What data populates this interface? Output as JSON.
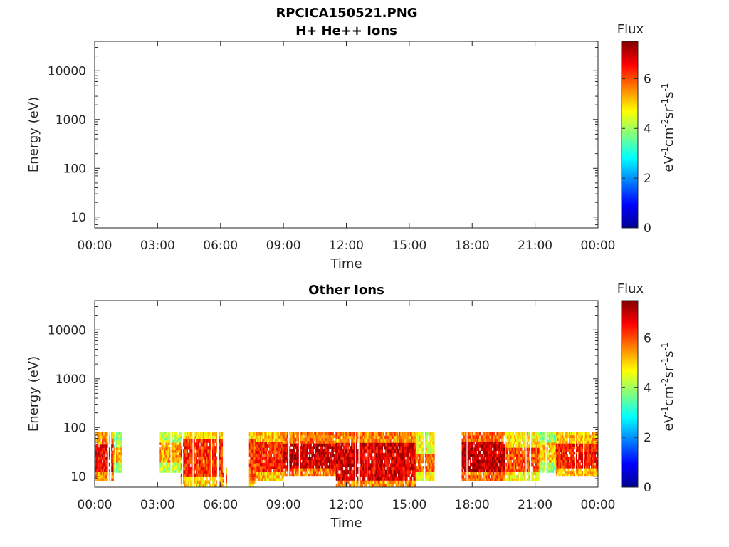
{
  "figure_title": "RPCICA150521.PNG",
  "chart_data": [
    {
      "type": "heatmap",
      "title": "H+ He++ Ions",
      "xlabel": "Time",
      "ylabel": "Energy (eV)",
      "x_tick_labels": [
        "00:00",
        "03:00",
        "06:00",
        "09:00",
        "12:00",
        "15:00",
        "18:00",
        "21:00",
        "00:00"
      ],
      "x_range_hours": [
        0,
        24
      ],
      "y_scale": "log",
      "y_range": [
        6,
        40000
      ],
      "y_tick_values": [
        10,
        100,
        1000,
        10000
      ],
      "y_tick_labels": [
        "10",
        "100",
        "1000",
        "10000"
      ],
      "colorbar": {
        "label": "Flux",
        "units": "eV-1cm-2sr-1s-1",
        "range": [
          0,
          7.5
        ],
        "tick_values": [
          0,
          2,
          4,
          6
        ],
        "tick_labels": [
          "0",
          "2",
          "4",
          "6"
        ],
        "colormap": "jet"
      },
      "segments": []
    },
    {
      "type": "heatmap",
      "title": "Other Ions",
      "xlabel": "Time",
      "ylabel": "Energy (eV)",
      "x_tick_labels": [
        "00:00",
        "03:00",
        "06:00",
        "09:00",
        "12:00",
        "15:00",
        "18:00",
        "21:00",
        "00:00"
      ],
      "x_range_hours": [
        0,
        24
      ],
      "y_scale": "log",
      "y_range": [
        6,
        40000
      ],
      "y_tick_values": [
        10,
        100,
        1000,
        10000
      ],
      "y_tick_labels": [
        "10",
        "100",
        "1000",
        "10000"
      ],
      "colorbar": {
        "label": "Flux",
        "units": "eV-1cm-2sr-1s-1",
        "range": [
          0,
          7.5
        ],
        "tick_values": [
          0,
          2,
          4,
          6
        ],
        "tick_labels": [
          "0",
          "2",
          "4",
          "6"
        ],
        "colormap": "jet"
      },
      "segments": [
        {
          "t0": 0.0,
          "t1": 0.9,
          "emin": 8,
          "emax": 80,
          "core": [
            12,
            45
          ],
          "flux": 6.6
        },
        {
          "t0": 0.9,
          "t1": 1.3,
          "emin": 12,
          "emax": 80,
          "core": [
            20,
            40
          ],
          "flux": 5.2
        },
        {
          "t0": 3.1,
          "t1": 4.1,
          "emin": 12,
          "emax": 80,
          "core": [
            20,
            50
          ],
          "flux": 5.4
        },
        {
          "t0": 4.1,
          "t1": 6.1,
          "emin": 6,
          "emax": 80,
          "core": [
            10,
            60
          ],
          "flux": 6.2
        },
        {
          "t0": 6.1,
          "t1": 6.3,
          "emin": 6,
          "emax": 15,
          "core": [
            7,
            12
          ],
          "flux": 6.0
        },
        {
          "t0": 7.3,
          "t1": 7.7,
          "emin": 6,
          "emax": 80,
          "core": [
            8,
            60
          ],
          "flux": 6.0
        },
        {
          "t0": 7.7,
          "t1": 9.0,
          "emin": 8,
          "emax": 80,
          "core": [
            12,
            50
          ],
          "flux": 6.3
        },
        {
          "t0": 9.0,
          "t1": 11.5,
          "emin": 10,
          "emax": 80,
          "core": [
            14,
            45
          ],
          "flux": 6.9
        },
        {
          "t0": 11.5,
          "t1": 15.3,
          "emin": 6,
          "emax": 80,
          "core": [
            8,
            50
          ],
          "flux": 6.8
        },
        {
          "t0": 15.3,
          "t1": 16.2,
          "emin": 8,
          "emax": 80,
          "core": [
            12,
            30
          ],
          "flux": 5.8
        },
        {
          "t0": 17.5,
          "t1": 19.6,
          "emin": 8,
          "emax": 80,
          "core": [
            12,
            50
          ],
          "flux": 7.0
        },
        {
          "t0": 19.6,
          "t1": 21.2,
          "emin": 8,
          "emax": 80,
          "core": [
            12,
            40
          ],
          "flux": 6.0
        },
        {
          "t0": 21.2,
          "t1": 22.0,
          "emin": 12,
          "emax": 80,
          "core": [
            20,
            50
          ],
          "flux": 5.0
        },
        {
          "t0": 22.0,
          "t1": 24.0,
          "emin": 10,
          "emax": 80,
          "core": [
            14,
            45
          ],
          "flux": 6.4
        }
      ]
    }
  ]
}
